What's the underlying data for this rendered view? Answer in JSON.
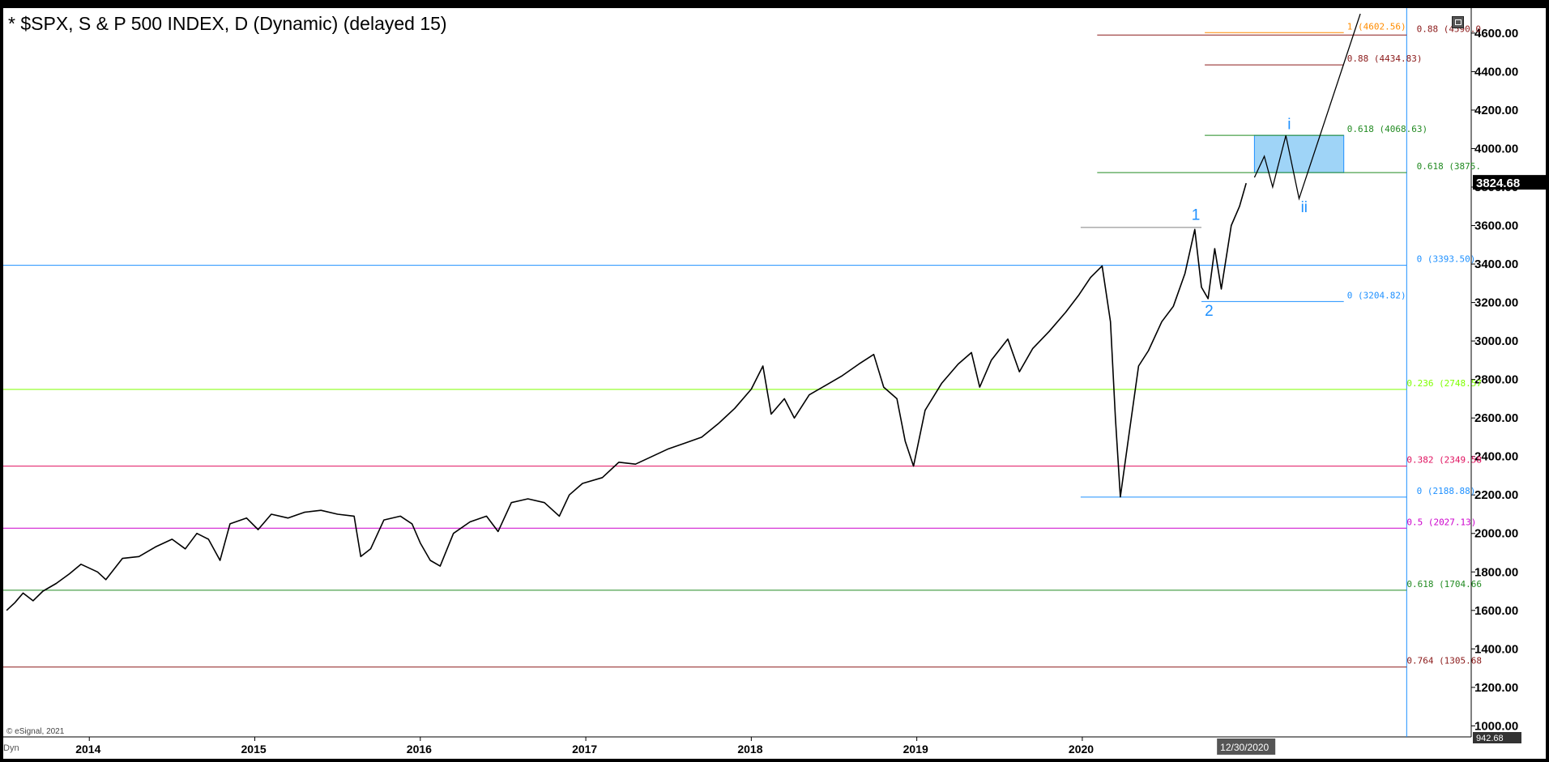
{
  "window": {
    "title": "* $SPX, S & P 500 INDEX, D (Dynamic) (delayed 15)",
    "copyright": "© eSignal, 2021",
    "dyn_label": "Dyn"
  },
  "chart_data": {
    "type": "line",
    "ylim": [
      942.68,
      4730
    ],
    "y_ticks": [
      1000,
      1200,
      1400,
      1600,
      1800,
      2000,
      2200,
      2400,
      2600,
      2800,
      3000,
      3200,
      3400,
      3600,
      3800,
      4000,
      4200,
      4400,
      4600
    ],
    "y_tick_labels": [
      "1000.00",
      "1200.00",
      "1400.00",
      "1600.00",
      "1800.00",
      "2000.00",
      "2200.00",
      "2400.00",
      "2600.00",
      "2800.00",
      "3000.00",
      "3200.00",
      "3400.00",
      "3600.00",
      "3800.00",
      "4000.00",
      "4200.00",
      "4400.00",
      "4600.00"
    ],
    "x_ticks": [
      {
        "label": "2014",
        "x": 2014.0
      },
      {
        "label": "2015",
        "x": 2015.0
      },
      {
        "label": "2016",
        "x": 2016.0
      },
      {
        "label": "2017",
        "x": 2017.0
      },
      {
        "label": "2018",
        "x": 2018.0
      },
      {
        "label": "2019",
        "x": 2019.0
      },
      {
        "label": "2020",
        "x": 2020.0
      }
    ],
    "xlim": [
      2013.48,
      2022.35
    ],
    "current_date_label": "12/30/2020",
    "current_date_x": 2020.99,
    "last_price_label": "3824.68",
    "last_price": 3824.68,
    "bottom_value_label": "942.68",
    "series": [
      {
        "color": "#000000",
        "points": [
          [
            2013.5,
            1600
          ],
          [
            2013.55,
            1640
          ],
          [
            2013.6,
            1690
          ],
          [
            2013.66,
            1650
          ],
          [
            2013.72,
            1700
          ],
          [
            2013.8,
            1740
          ],
          [
            2013.88,
            1790
          ],
          [
            2013.95,
            1840
          ],
          [
            2014.05,
            1800
          ],
          [
            2014.1,
            1760
          ],
          [
            2014.2,
            1870
          ],
          [
            2014.3,
            1880
          ],
          [
            2014.4,
            1930
          ],
          [
            2014.5,
            1970
          ],
          [
            2014.58,
            1920
          ],
          [
            2014.65,
            2000
          ],
          [
            2014.72,
            1970
          ],
          [
            2014.79,
            1860
          ],
          [
            2014.85,
            2050
          ],
          [
            2014.95,
            2080
          ],
          [
            2015.02,
            2020
          ],
          [
            2015.1,
            2100
          ],
          [
            2015.2,
            2080
          ],
          [
            2015.3,
            2110
          ],
          [
            2015.4,
            2120
          ],
          [
            2015.5,
            2100
          ],
          [
            2015.6,
            2090
          ],
          [
            2015.64,
            1880
          ],
          [
            2015.7,
            1920
          ],
          [
            2015.78,
            2070
          ],
          [
            2015.88,
            2090
          ],
          [
            2015.95,
            2050
          ],
          [
            2016.0,
            1950
          ],
          [
            2016.06,
            1860
          ],
          [
            2016.12,
            1830
          ],
          [
            2016.2,
            2000
          ],
          [
            2016.3,
            2060
          ],
          [
            2016.4,
            2090
          ],
          [
            2016.47,
            2010
          ],
          [
            2016.55,
            2160
          ],
          [
            2016.65,
            2180
          ],
          [
            2016.75,
            2160
          ],
          [
            2016.84,
            2090
          ],
          [
            2016.9,
            2200
          ],
          [
            2016.98,
            2260
          ],
          [
            2017.1,
            2290
          ],
          [
            2017.2,
            2370
          ],
          [
            2017.3,
            2360
          ],
          [
            2017.4,
            2400
          ],
          [
            2017.5,
            2440
          ],
          [
            2017.6,
            2470
          ],
          [
            2017.7,
            2500
          ],
          [
            2017.8,
            2570
          ],
          [
            2017.9,
            2650
          ],
          [
            2018.0,
            2750
          ],
          [
            2018.07,
            2870
          ],
          [
            2018.12,
            2620
          ],
          [
            2018.2,
            2700
          ],
          [
            2018.26,
            2600
          ],
          [
            2018.35,
            2720
          ],
          [
            2018.45,
            2770
          ],
          [
            2018.55,
            2820
          ],
          [
            2018.65,
            2880
          ],
          [
            2018.74,
            2930
          ],
          [
            2018.8,
            2760
          ],
          [
            2018.88,
            2700
          ],
          [
            2018.93,
            2480
          ],
          [
            2018.98,
            2350
          ],
          [
            2019.05,
            2640
          ],
          [
            2019.15,
            2780
          ],
          [
            2019.25,
            2880
          ],
          [
            2019.33,
            2940
          ],
          [
            2019.38,
            2760
          ],
          [
            2019.45,
            2900
          ],
          [
            2019.55,
            3010
          ],
          [
            2019.62,
            2840
          ],
          [
            2019.7,
            2960
          ],
          [
            2019.8,
            3050
          ],
          [
            2019.9,
            3150
          ],
          [
            2019.98,
            3240
          ],
          [
            2020.05,
            3330
          ],
          [
            2020.12,
            3390
          ],
          [
            2020.17,
            3100
          ],
          [
            2020.2,
            2600
          ],
          [
            2020.23,
            2190
          ],
          [
            2020.28,
            2500
          ],
          [
            2020.34,
            2870
          ],
          [
            2020.4,
            2950
          ],
          [
            2020.48,
            3100
          ],
          [
            2020.55,
            3180
          ],
          [
            2020.62,
            3350
          ],
          [
            2020.68,
            3580
          ],
          [
            2020.72,
            3280
          ],
          [
            2020.76,
            3220
          ],
          [
            2020.8,
            3480
          ],
          [
            2020.84,
            3270
          ],
          [
            2020.9,
            3600
          ],
          [
            2020.95,
            3700
          ],
          [
            2020.99,
            3820
          ]
        ]
      }
    ],
    "projection_path": [
      [
        2021.04,
        3850
      ],
      [
        2021.1,
        3960
      ],
      [
        2021.15,
        3800
      ],
      [
        2021.23,
        4068
      ],
      [
        2021.31,
        3740
      ],
      [
        2021.68,
        4700
      ]
    ],
    "target_box": {
      "x_start": 2021.04,
      "x_end": 2021.58,
      "y_low": 3875,
      "y_high": 4068.63
    },
    "wave_labels": [
      {
        "text": "1",
        "x": 2020.66,
        "y": 3630,
        "color": "#1e90ff"
      },
      {
        "text": "2",
        "x": 2020.74,
        "y": 3130,
        "color": "#1e90ff"
      },
      {
        "text": "i",
        "x": 2021.24,
        "y": 4100,
        "color": "#1e90ff"
      },
      {
        "text": "ii",
        "x": 2021.32,
        "y": 3670,
        "color": "#1e90ff"
      }
    ],
    "levels": [
      {
        "label": "1 (4602.56)",
        "value": 4602.56,
        "x_start": 2020.74,
        "x_end": 2021.58,
        "color": "#ff8c00",
        "label_x": 2021.6
      },
      {
        "label": "0.88 (4590.0",
        "value": 4590.0,
        "x_start": 2020.09,
        "x_end": 2021.96,
        "color": "#8b1a1a",
        "label_x": 2022.02
      },
      {
        "label": "0.88 (4434.83)",
        "value": 4434.83,
        "x_start": 2020.74,
        "x_end": 2021.58,
        "color": "#8b1a1a",
        "label_x": 2021.6
      },
      {
        "label": "0.618 (4068.63)",
        "value": 4068.63,
        "x_start": 2020.74,
        "x_end": 2021.58,
        "color": "#228b22",
        "label_x": 2021.6
      },
      {
        "label": "0.618 (3875.",
        "value": 3875.0,
        "x_start": 2020.09,
        "x_end": 2021.96,
        "color": "#228b22",
        "label_x": 2022.02
      },
      {
        "label": "",
        "value": 3590,
        "x_start": 2019.99,
        "x_end": 2020.72,
        "color": "#808080",
        "label_x": 2020.72
      },
      {
        "label": "0 (3393.50)",
        "value": 3393.5,
        "x_start": 2013.48,
        "x_end": 2021.96,
        "color": "#1e90ff",
        "label_x": 2022.02
      },
      {
        "label": "0 (3204.82)",
        "value": 3204.82,
        "x_start": 2020.72,
        "x_end": 2021.58,
        "color": "#1e90ff",
        "label_x": 2021.6
      },
      {
        "label": "0.236 (2748.57",
        "value": 2748.57,
        "x_start": 2013.48,
        "x_end": 2021.96,
        "color": "#7fff00",
        "label_x": 2021.96
      },
      {
        "label": "0.382 (2349.58",
        "value": 2349.58,
        "x_start": 2013.48,
        "x_end": 2021.96,
        "color": "#e0115f",
        "label_x": 2021.96
      },
      {
        "label": "0 (2188.88)",
        "value": 2188.88,
        "x_start": 2019.99,
        "x_end": 2021.96,
        "color": "#1e90ff",
        "label_x": 2022.02
      },
      {
        "label": "0.5 (2027.13)",
        "value": 2027.13,
        "x_start": 2013.48,
        "x_end": 2021.96,
        "color": "#cc00cc",
        "label_x": 2021.96
      },
      {
        "label": "0.618 (1704.66",
        "value": 1704.66,
        "x_start": 2013.48,
        "x_end": 2021.96,
        "color": "#228b22",
        "label_x": 2021.96
      },
      {
        "label": "0.764 (1305.68",
        "value": 1305.68,
        "x_start": 2013.48,
        "x_end": 2021.96,
        "color": "#8b1a1a",
        "label_x": 2021.96
      }
    ],
    "vertical_marker": {
      "x": 2021.96,
      "color": "#1e90ff"
    }
  }
}
